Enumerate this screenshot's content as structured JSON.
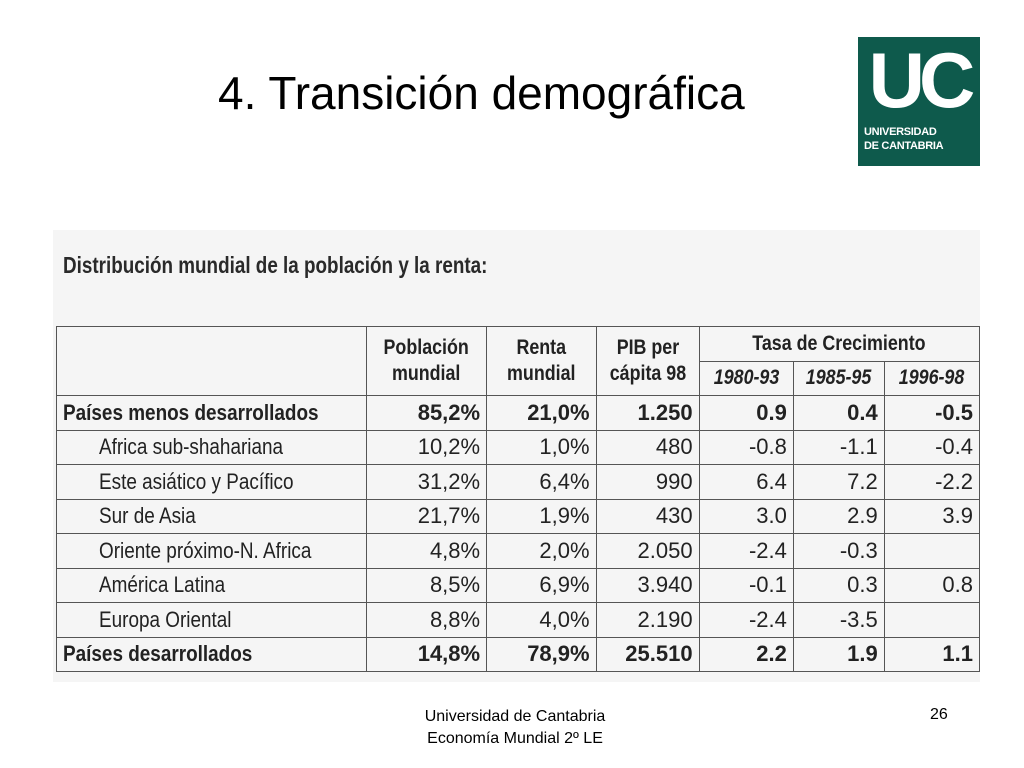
{
  "slide": {
    "title": "4. Transición demográfica",
    "logo": {
      "mark": "UC",
      "line1": "UNIVERSIDAD",
      "line2": "DE CANTABRIA"
    },
    "footer": {
      "line1": "Universidad de Cantabria",
      "line2": "Economía Mundial 2º LE"
    },
    "page_number": "26"
  },
  "table": {
    "heading": "Distribución mundial de la población y la renta:",
    "headers": {
      "poblacion_1": "Población",
      "poblacion_2": "mundial",
      "renta_1": "Renta",
      "renta_2": "mundial",
      "pib_1": "PIB per",
      "pib_2": "cápita 98",
      "tasa": "Tasa de Crecimiento",
      "y1": "1980-93",
      "y2": "1985-95",
      "y3": "1996-98"
    },
    "rows": [
      {
        "label": "Países menos desarrollados",
        "poblacion": "85,2%",
        "renta": "21,0%",
        "pib": "1.250",
        "g1": "0.9",
        "g2": "0.4",
        "g3": "-0.5"
      },
      {
        "label": "Africa sub-shahariana",
        "poblacion": "10,2%",
        "renta": "1,0%",
        "pib": "480",
        "g1": "-0.8",
        "g2": "-1.1",
        "g3": "-0.4"
      },
      {
        "label": "Este asiático y Pacífico",
        "poblacion": "31,2%",
        "renta": "6,4%",
        "pib": "990",
        "g1": "6.4",
        "g2": "7.2",
        "g3": "-2.2"
      },
      {
        "label": "Sur de Asia",
        "poblacion": "21,7%",
        "renta": "1,9%",
        "pib": "430",
        "g1": "3.0",
        "g2": "2.9",
        "g3": "3.9"
      },
      {
        "label": "Oriente próximo-N. Africa",
        "poblacion": "4,8%",
        "renta": "2,0%",
        "pib": "2.050",
        "g1": "-2.4",
        "g2": "-0.3",
        "g3": ""
      },
      {
        "label": "América Latina",
        "poblacion": "8,5%",
        "renta": "6,9%",
        "pib": "3.940",
        "g1": "-0.1",
        "g2": "0.3",
        "g3": "0.8"
      },
      {
        "label": "Europa Oriental",
        "poblacion": "8,8%",
        "renta": "4,0%",
        "pib": "2.190",
        "g1": "-2.4",
        "g2": "-3.5",
        "g3": ""
      },
      {
        "label": "Países desarrollados",
        "poblacion": "14,8%",
        "renta": "78,9%",
        "pib": "25.510",
        "g1": "2.2",
        "g2": "1.9",
        "g3": "1.1"
      }
    ]
  }
}
